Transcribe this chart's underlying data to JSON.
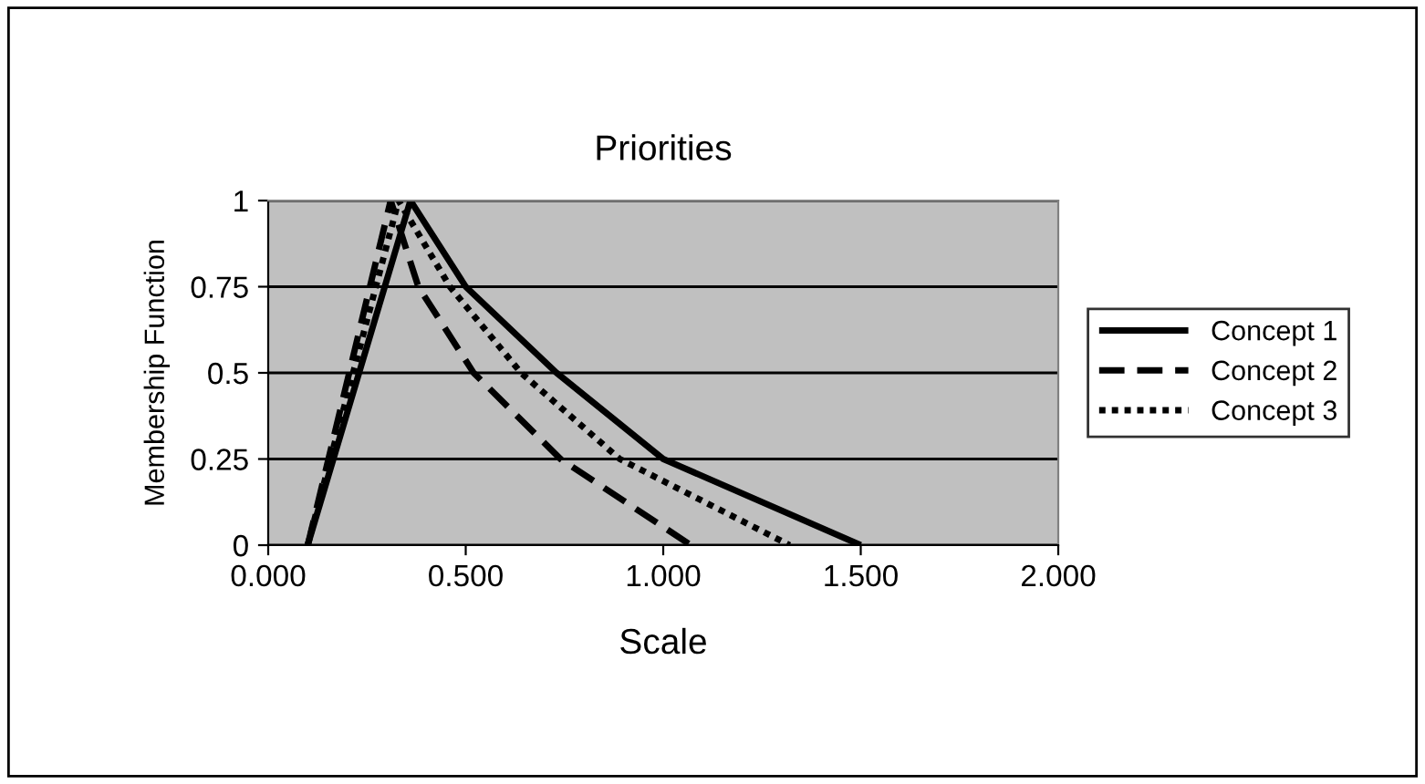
{
  "chart_data": {
    "type": "line",
    "title": "Priorities",
    "xlabel": "Scale",
    "ylabel": "Membership Function",
    "xlim": [
      0,
      2
    ],
    "xticks": [
      {
        "value": 0,
        "label": "0.000"
      },
      {
        "value": 0.5,
        "label": "0.500"
      },
      {
        "value": 1,
        "label": "1.000"
      },
      {
        "value": 1.5,
        "label": "1.500"
      },
      {
        "value": 2,
        "label": "2.000"
      }
    ],
    "ylim": [
      0,
      1
    ],
    "yticks": [
      0,
      0.25,
      0.5,
      0.75,
      1
    ],
    "grid": "y",
    "legend": "right",
    "marker": "none",
    "series": [
      {
        "name": "Concept 1",
        "color": "#000000",
        "line_style": "solid",
        "x": [
          0.1,
          0.36,
          0.5,
          0.73,
          1.0,
          1.5
        ],
        "values": [
          0,
          1,
          0.75,
          0.5,
          0.25,
          0
        ]
      },
      {
        "name": "Concept 2",
        "color": "#000000",
        "line_style": "dashed",
        "x": [
          0.1,
          0.31,
          0.38,
          0.52,
          0.74,
          1.07
        ],
        "values": [
          0,
          1,
          0.75,
          0.5,
          0.25,
          0
        ]
      },
      {
        "name": "Concept 3",
        "color": "#000000",
        "line_style": "dotted",
        "x": [
          0.1,
          0.33,
          0.46,
          0.64,
          0.89,
          1.32
        ],
        "values": [
          0,
          1,
          0.75,
          0.5,
          0.25,
          0
        ]
      }
    ]
  }
}
